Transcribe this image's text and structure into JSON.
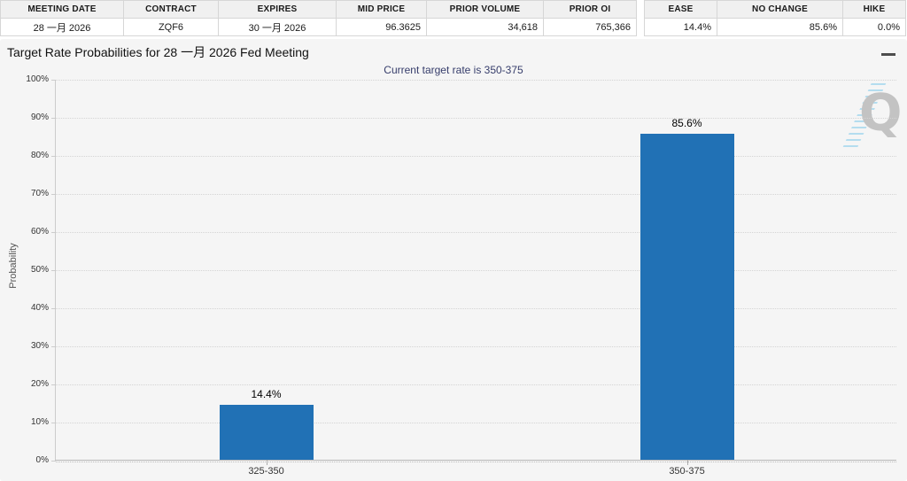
{
  "futures_table": {
    "columns": [
      {
        "header": "MEETING DATE",
        "value": "28 一月 2026"
      },
      {
        "header": "CONTRACT",
        "value": "ZQF6"
      },
      {
        "header": "EXPIRES",
        "value": "30 一月 2026"
      },
      {
        "header": "MID PRICE",
        "value": "96.3625"
      },
      {
        "header": "PRIOR VOLUME",
        "value": "34,618"
      },
      {
        "header": "PRIOR OI",
        "value": "765,366"
      }
    ]
  },
  "action_table": {
    "columns": [
      {
        "header": "EASE",
        "value": "14.4%"
      },
      {
        "header": "NO CHANGE",
        "value": "85.6%"
      },
      {
        "header": "HIKE",
        "value": "0.0%"
      }
    ]
  },
  "chart": {
    "title": "Target Rate Probabilities for 28 一月 2026 Fed Meeting",
    "subtitle": "Current target rate is 350-375",
    "watermark_letter": "Q"
  },
  "chart_data": {
    "type": "bar",
    "title": "Target Rate Probabilities for 28 一月 2026 Fed Meeting",
    "subtitle": "Current target rate is 350-375",
    "categories": [
      "325-350",
      "350-375"
    ],
    "values": [
      14.4,
      85.6
    ],
    "value_labels": [
      "14.4%",
      "85.6%"
    ],
    "xlabel": "",
    "ylabel": "Probability",
    "ylim": [
      0,
      100
    ],
    "ytick_interval": 10,
    "ytick_suffix": "%",
    "grid": "dotted-horizontal",
    "legend": "none",
    "bar_color": "#2171b5",
    "background_color": "#f5f5f5",
    "subtitle_color": "#363d6b"
  }
}
